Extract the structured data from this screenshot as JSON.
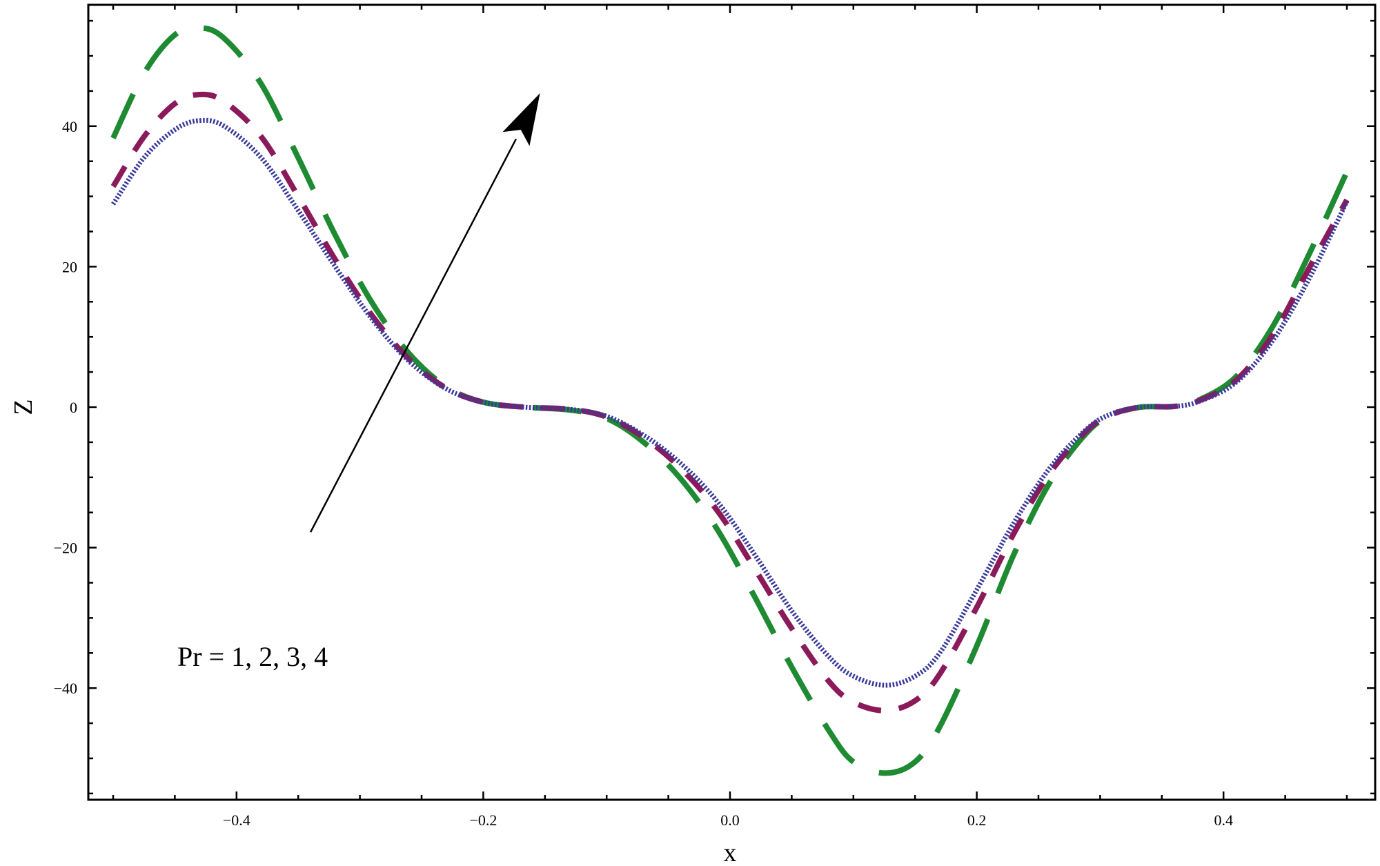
{
  "chart_data": {
    "type": "line",
    "title": "",
    "xlabel": "x",
    "ylabel": "Z",
    "xlim": [
      -0.52,
      0.52
    ],
    "ylim": [
      -55.9,
      57.6
    ],
    "grid": false,
    "legend_position": "none",
    "x_ticks": [
      -0.4,
      -0.2,
      0.0,
      0.2,
      0.4
    ],
    "x_tick_labels": [
      "−0.4",
      "−0.2",
      "0.0",
      "0.2",
      "0.4"
    ],
    "y_ticks": [
      -40,
      -20,
      0,
      20,
      40
    ],
    "y_tick_labels": [
      "−40",
      "−20",
      "0",
      "20",
      "40"
    ],
    "annotations": [
      {
        "text": "Pr = 1, 2, 3, 4",
        "x": -0.45,
        "y": -37.0
      },
      {
        "type": "arrow",
        "from": [
          -0.34,
          -17.8
        ],
        "to": [
          -0.154,
          44.7
        ],
        "meaning": "increasing Pr"
      }
    ],
    "series": [
      {
        "name": "Pr = 1",
        "style": "dotted",
        "color": "#3a3a9a",
        "x": [
          -0.5,
          -0.475,
          -0.45,
          -0.43,
          -0.41,
          -0.38,
          -0.35,
          -0.32,
          -0.29,
          -0.26,
          -0.23,
          -0.2,
          -0.167,
          -0.13,
          -0.1,
          -0.07,
          -0.04,
          -0.01,
          0.02,
          0.05,
          0.08,
          0.1,
          0.126,
          0.15,
          0.17,
          0.2,
          0.23,
          0.26,
          0.29,
          0.31,
          0.333,
          0.36,
          0.38,
          0.41,
          0.44,
          0.47,
          0.5
        ],
        "values": [
          28.9,
          35.5,
          39.5,
          40.8,
          40.0,
          35.5,
          28.0,
          20.0,
          12.5,
          6.5,
          2.6,
          0.7,
          0.0,
          -0.3,
          -1.3,
          -4.0,
          -8.0,
          -13.5,
          -21.0,
          -29.0,
          -35.5,
          -38.3,
          -39.6,
          -38.3,
          -35.0,
          -26.0,
          -16.5,
          -8.5,
          -3.0,
          -0.9,
          0.0,
          0.1,
          0.8,
          3.5,
          9.5,
          18.5,
          29.3
        ]
      },
      {
        "name": "Pr = 2",
        "style": "dashed",
        "color": "#8b1a5a",
        "x": [
          -0.5,
          -0.475,
          -0.45,
          -0.43,
          -0.41,
          -0.38,
          -0.35,
          -0.32,
          -0.29,
          -0.26,
          -0.23,
          -0.2,
          -0.167,
          -0.13,
          -0.1,
          -0.07,
          -0.04,
          -0.01,
          0.02,
          0.05,
          0.08,
          0.1,
          0.126,
          0.15,
          0.17,
          0.2,
          0.23,
          0.26,
          0.29,
          0.31,
          0.333,
          0.36,
          0.38,
          0.41,
          0.44,
          0.47,
          0.5
        ],
        "values": [
          31.4,
          38.5,
          43.2,
          44.5,
          43.5,
          38.5,
          30.0,
          21.0,
          13.0,
          6.8,
          2.7,
          0.7,
          0.0,
          -0.3,
          -1.4,
          -4.3,
          -8.7,
          -14.8,
          -23.0,
          -31.5,
          -39.0,
          -42.0,
          -43.2,
          -41.8,
          -38.0,
          -28.5,
          -18.0,
          -9.2,
          -3.2,
          -1.0,
          0.0,
          0.1,
          0.9,
          3.8,
          10.3,
          20.0,
          29.5
        ]
      },
      {
        "name": "Pr = 3",
        "style": "long-dashed",
        "color": "#1e8a32",
        "x": [
          -0.5,
          -0.475,
          -0.45,
          -0.43,
          -0.41,
          -0.38,
          -0.35,
          -0.32,
          -0.29,
          -0.26,
          -0.23,
          -0.2,
          -0.167,
          -0.13,
          -0.1,
          -0.07,
          -0.04,
          -0.01,
          0.02,
          0.05,
          0.08,
          0.1,
          0.126,
          0.15,
          0.17,
          0.2,
          0.23,
          0.26,
          0.29,
          0.31,
          0.333,
          0.36,
          0.38,
          0.41,
          0.44,
          0.47,
          0.5
        ],
        "values": [
          38.3,
          47.5,
          53.0,
          54.0,
          52.5,
          46.0,
          35.5,
          24.5,
          14.8,
          7.6,
          2.9,
          0.7,
          0.0,
          -0.4,
          -1.6,
          -5.0,
          -10.2,
          -17.5,
          -27.0,
          -37.0,
          -46.0,
          -50.5,
          -52.1,
          -50.5,
          -45.5,
          -34.0,
          -21.0,
          -10.5,
          -3.5,
          -1.1,
          0.0,
          0.1,
          1.0,
          4.3,
          11.5,
          22.0,
          33.5
        ]
      }
    ]
  },
  "axes": {
    "x_title": "x",
    "y_title": "Z"
  },
  "annotation_text": "Pr = 1, 2, 3, 4"
}
